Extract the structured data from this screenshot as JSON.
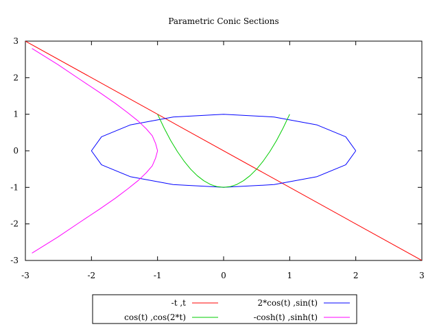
{
  "chart_data": {
    "type": "line",
    "title": "Parametric Conic Sections",
    "xlabel": "",
    "ylabel": "",
    "xlim": [
      -3,
      3
    ],
    "ylim": [
      -3,
      3
    ],
    "xticks": [
      -3,
      -2,
      -1,
      0,
      1,
      2,
      3
    ],
    "yticks": [
      -3,
      -2,
      -1,
      0,
      1,
      2,
      3
    ],
    "grid": false,
    "legend_position": "bottom-center",
    "series": [
      {
        "name": "-t ,t",
        "color": "#ff0000",
        "x": [
          3,
          -3
        ],
        "y": [
          -3,
          3
        ]
      },
      {
        "name": "2*cos(t) ,sin(t)",
        "color": "#0000ff",
        "x": [
          2,
          1.848,
          1.414,
          0.765,
          0,
          -0.765,
          -1.414,
          -1.848,
          -2,
          -1.848,
          -1.414,
          -0.765,
          0,
          0.765,
          1.414,
          1.848,
          2
        ],
        "y": [
          0,
          0.383,
          0.707,
          0.924,
          1,
          0.924,
          0.707,
          0.383,
          0,
          -0.383,
          -0.707,
          -0.924,
          -1,
          -0.924,
          -0.707,
          -0.383,
          0
        ]
      },
      {
        "name": "cos(t) ,cos(2*t)",
        "color": "#00cc00",
        "x": [
          1,
          0.9,
          0.8,
          0.7,
          0.6,
          0.5,
          0.4,
          0.3,
          0.2,
          0.1,
          0,
          -0.1,
          -0.2,
          -0.3,
          -0.4,
          -0.5,
          -0.6,
          -0.7,
          -0.8,
          -0.9,
          -1
        ],
        "y": [
          1,
          0.62,
          0.28,
          -0.02,
          -0.28,
          -0.5,
          -0.68,
          -0.82,
          -0.92,
          -0.98,
          -1,
          -0.98,
          -0.92,
          -0.82,
          -0.68,
          -0.5,
          -0.28,
          -0.02,
          0.28,
          0.62,
          1
        ]
      },
      {
        "name": "-cosh(t) ,sinh(t)",
        "color": "#ff00ff",
        "x": [
          -2.9,
          -2.51,
          -2.18,
          -1.88,
          -1.64,
          -1.45,
          -1.29,
          -1.17,
          -1.08,
          -1.03,
          -1,
          -1.03,
          -1.08,
          -1.17,
          -1.29,
          -1.45,
          -1.64,
          -1.88,
          -2.18,
          -2.51,
          -2.9
        ],
        "y": [
          -2.8,
          -2.36,
          -1.96,
          -1.6,
          -1.3,
          -1.04,
          -0.81,
          -0.6,
          -0.41,
          -0.2,
          0,
          0.2,
          0.41,
          0.6,
          0.81,
          1.04,
          1.3,
          1.6,
          1.96,
          2.36,
          2.8
        ]
      }
    ]
  }
}
